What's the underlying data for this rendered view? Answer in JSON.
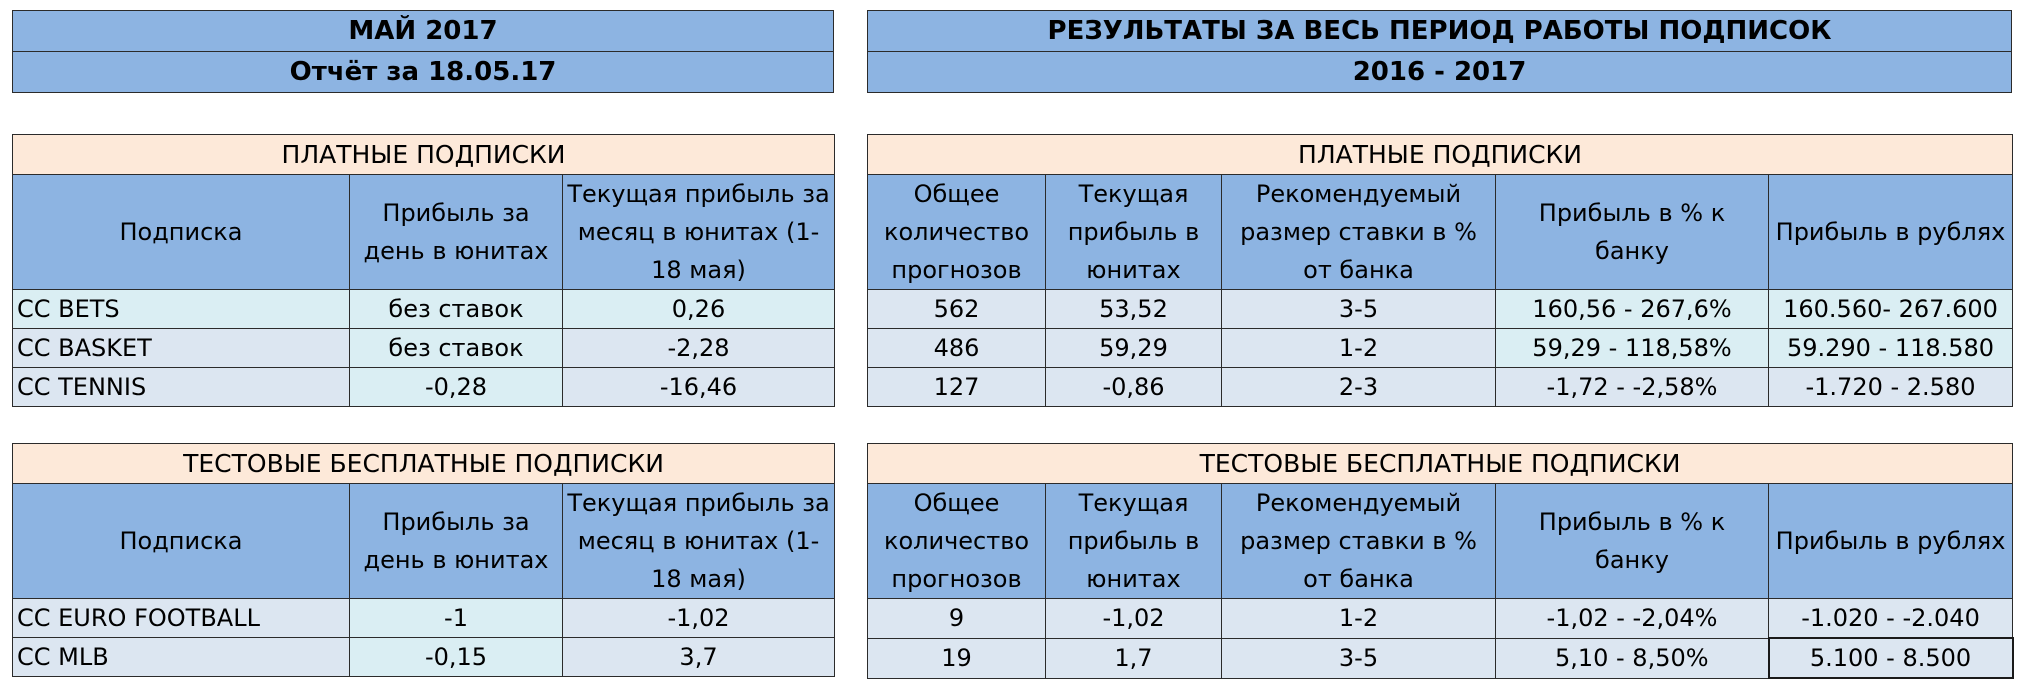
{
  "left_header": {
    "title": "МАЙ 2017",
    "subtitle": "Отчёт за 18.05.17"
  },
  "right_header": {
    "title": "РЕЗУЛЬТАТЫ ЗА ВЕСЬ ПЕРИОД РАБОТЫ ПОДПИСОК",
    "subtitle": "2016 - 2017"
  },
  "paid": {
    "section_title": "ПЛАТНЫЕ ПОДПИСКИ",
    "left_columns": [
      "Подписка",
      "Прибыль за день в юнитах",
      "Текущая прибыль за месяц в юнитах (1-18 мая)"
    ],
    "right_columns": [
      "Общее количество прогнозов",
      "Текущая прибыль в юнитах",
      "Рекомендуемый размер ставки в % от банка",
      "Прибыль в % к банку",
      "Прибыль в рублях"
    ],
    "rows": [
      {
        "name": "CC BETS",
        "day": "без ставок",
        "month": "0,26",
        "total": "562",
        "units": "53,52",
        "stake": "3-5",
        "pct": "160,56 - 267,6%",
        "rub": "160.560- 267.600"
      },
      {
        "name": "CC BASKET",
        "day": "без ставок",
        "month": "-2,28",
        "total": "486",
        "units": "59,29",
        "stake": "1-2",
        "pct": "59,29 - 118,58%",
        "rub": "59.290 - 118.580"
      },
      {
        "name": "CC TENNIS",
        "day": "-0,28",
        "month": "-16,46",
        "total": "127",
        "units": "-0,86",
        "stake": "2-3",
        "pct": "-1,72 -  -2,58%",
        "rub": "-1.720 - 2.580"
      }
    ]
  },
  "test": {
    "section_title": "ТЕСТОВЫЕ БЕСПЛАТНЫЕ ПОДПИСКИ",
    "left_columns": [
      "Подписка",
      "Прибыль за день в юнитах",
      "Текущая прибыль за месяц в юнитах (1-18 мая)"
    ],
    "right_columns": [
      "Общее количество прогнозов",
      "Текущая прибыль в юнитах",
      "Рекомендуемый размер ставки в % от банка",
      "Прибыль в % к банку",
      "Прибыль в рублях"
    ],
    "rows": [
      {
        "name": "CC EURO FOOTBALL",
        "day": "-1",
        "month": "-1,02",
        "total": "9",
        "units": "-1,02",
        "stake": "1-2",
        "pct": "-1,02 - -2,04%",
        "rub": "-1.020 - -2.040"
      },
      {
        "name": "CC MLB",
        "day": "-0,15",
        "month": "3,7",
        "total": "19",
        "units": "1,7",
        "stake": "3-5",
        "pct": "5,10 - 8,50%",
        "rub": "5.100 - 8.500"
      }
    ]
  }
}
